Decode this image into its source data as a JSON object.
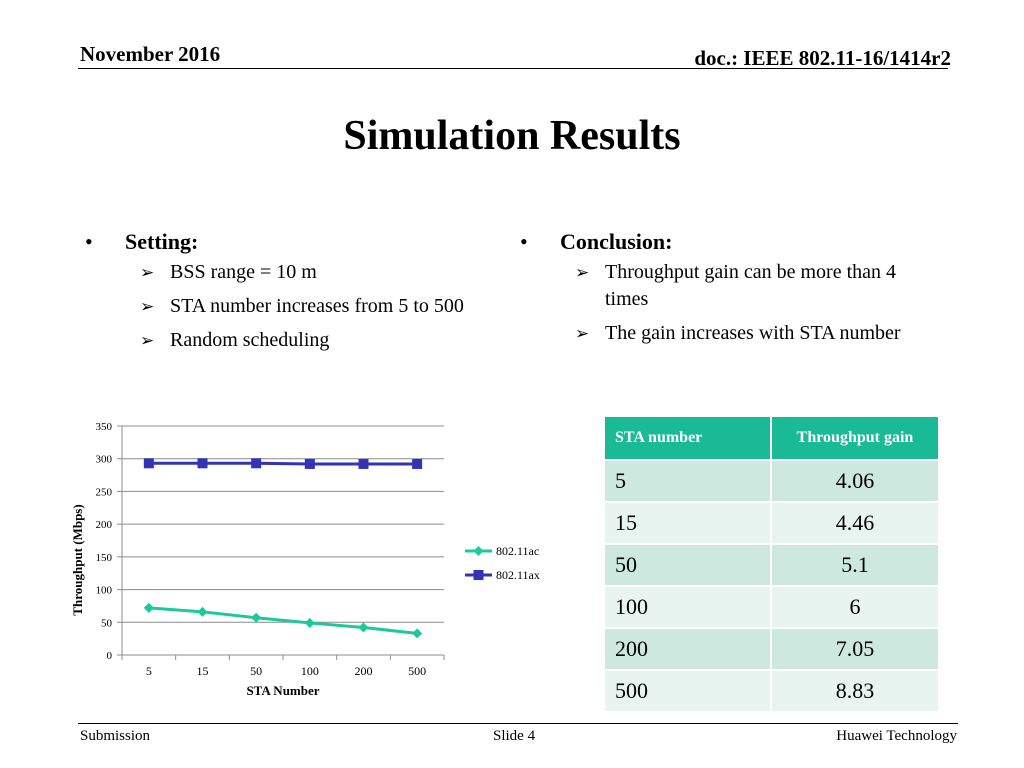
{
  "header": {
    "date": "November 2016",
    "doc": "doc.: IEEE 802.11-16/1414r2"
  },
  "title": "Simulation Results",
  "setting": {
    "heading": "Setting:",
    "items": [
      "BSS range = 10 m",
      "STA number increases from 5 to 500",
      "Random scheduling"
    ]
  },
  "conclusion": {
    "heading": "Conclusion:",
    "items": [
      "Throughput gain can be more than 4 times",
      "The gain increases with STA number"
    ]
  },
  "chart_data": {
    "type": "line",
    "categories": [
      "5",
      "15",
      "50",
      "100",
      "200",
      "500"
    ],
    "series": [
      {
        "name": "802.11ac",
        "values": [
          72,
          66,
          57,
          49,
          42,
          33
        ],
        "color": "#1cc99d",
        "marker": "diamond"
      },
      {
        "name": "802.11ax",
        "values": [
          293,
          293,
          293,
          292,
          292,
          292
        ],
        "color": "#3333b5",
        "marker": "square"
      }
    ],
    "xlabel": "STA Number",
    "ylabel": "Throughput (Mbps)",
    "ylim": [
      0,
      350
    ],
    "yticks": [
      0,
      50,
      100,
      150,
      200,
      250,
      300,
      350
    ],
    "grid": true,
    "legend": "right"
  },
  "table": {
    "headers": [
      "STA number",
      "Throughput gain"
    ],
    "rows": [
      [
        "5",
        "4.06"
      ],
      [
        "15",
        "4.46"
      ],
      [
        "50",
        "5.1"
      ],
      [
        "100",
        "6"
      ],
      [
        "200",
        "7.05"
      ],
      [
        "500",
        "8.83"
      ]
    ]
  },
  "footer": {
    "left": "Submission",
    "center": "Slide 4",
    "right": "Huawei Technology"
  }
}
